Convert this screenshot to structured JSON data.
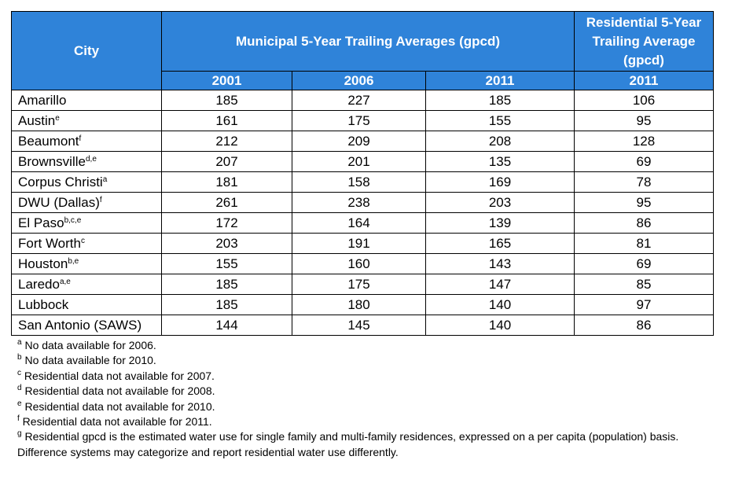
{
  "header": {
    "city": "City",
    "municipal": "Municipal 5-Year Trailing Averages (gpcd)",
    "residential": "Residential 5-Year Trailing Average (gpcd)",
    "years": [
      "2001",
      "2006",
      "2011",
      "2011"
    ]
  },
  "rows": [
    {
      "city": "Amarillo",
      "sup": "",
      "v2001": "185",
      "v2006": "227",
      "v2011": "185",
      "res2011": "106"
    },
    {
      "city": "Austin",
      "sup": "e",
      "v2001": "161",
      "v2006": "175",
      "v2011": "155",
      "res2011": "95"
    },
    {
      "city": "Beaumont",
      "sup": "f",
      "v2001": "212",
      "v2006": "209",
      "v2011": "208",
      "res2011": "128"
    },
    {
      "city": "Brownsville",
      "sup": "d,e",
      "v2001": "207",
      "v2006": "201",
      "v2011": "135",
      "res2011": "69"
    },
    {
      "city": "Corpus Christi",
      "sup": "a",
      "v2001": "181",
      "v2006": "158",
      "v2011": "169",
      "res2011": "78"
    },
    {
      "city": "DWU (Dallas)",
      "sup": "f",
      "v2001": "261",
      "v2006": "238",
      "v2011": "203",
      "res2011": "95"
    },
    {
      "city": "El Paso",
      "sup": "b,c,e",
      "v2001": "172",
      "v2006": "164",
      "v2011": "139",
      "res2011": "86"
    },
    {
      "city": "Fort Worth",
      "sup": "c",
      "v2001": "203",
      "v2006": "191",
      "v2011": "165",
      "res2011": "81"
    },
    {
      "city": "Houston",
      "sup": "b,e",
      "v2001": "155",
      "v2006": "160",
      "v2011": "143",
      "res2011": "69"
    },
    {
      "city": "Laredo",
      "sup": "a,e",
      "v2001": "185",
      "v2006": "175",
      "v2011": "147",
      "res2011": "85"
    },
    {
      "city": "Lubbock",
      "sup": "",
      "v2001": "185",
      "v2006": "180",
      "v2011": "140",
      "res2011": "97"
    },
    {
      "city": "San Antonio (SAWS)",
      "sup": "",
      "v2001": "144",
      "v2006": "145",
      "v2011": "140",
      "res2011": "86"
    }
  ],
  "notes": [
    {
      "mark": "a",
      "text": " No data available for 2006."
    },
    {
      "mark": "b",
      "text": " No data available for 2010."
    },
    {
      "mark": "c",
      "text": " Residential data not available for 2007."
    },
    {
      "mark": "d",
      "text": " Residential data not available for 2008."
    },
    {
      "mark": "e",
      "text": " Residential data not available for 2010."
    },
    {
      "mark": "f",
      "text": " Residential data not available for 2011."
    },
    {
      "mark": "g",
      "text": " Residential gpcd is the estimated water use for single family and multi-family residences, expressed on a per capita (population) basis."
    },
    {
      "mark": "",
      "text": "Difference systems may categorize and report residential water use differently."
    }
  ]
}
